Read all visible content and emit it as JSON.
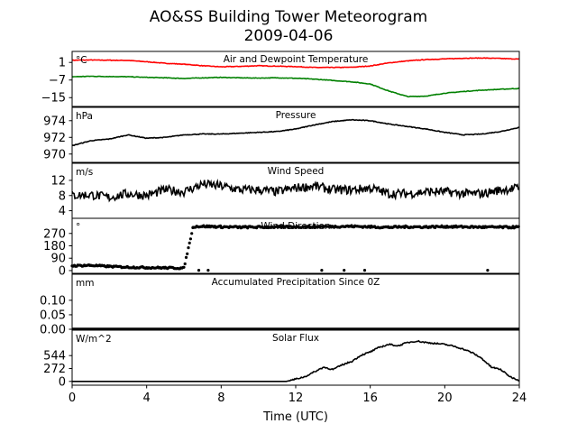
{
  "chart_data": {
    "type": "line",
    "title": "AO&SS Building Tower Meteorogram",
    "subtitle": "2009-04-06",
    "xlabel": "Time (UTC)",
    "xlim": [
      0,
      24
    ],
    "xticks": [
      "0",
      "4",
      "8",
      "12",
      "16",
      "20",
      "24"
    ],
    "panels": [
      {
        "name": "temperature",
        "title": "Air and Dewpoint Temperature",
        "unit": "°C",
        "ylim": [
          -19,
          6
        ],
        "yticks": [
          1,
          -7,
          -15
        ],
        "ytick_labels": [
          "1",
          "−7",
          "−15"
        ],
        "series": [
          {
            "color": "#ff0000",
            "x": [
              0,
              1,
              2,
              3,
              4,
              5,
              6,
              7,
              8,
              9,
              10,
              11,
              12,
              13,
              14,
              15,
              16,
              17,
              18,
              19,
              20,
              21,
              22,
              23,
              24
            ],
            "y": [
              2.0,
              2.1,
              2.0,
              1.9,
              1.3,
              0.6,
              0.2,
              -0.5,
              -1.0,
              -0.8,
              -0.5,
              -0.7,
              -0.9,
              -1.3,
              -1.3,
              -1.2,
              -0.6,
              0.8,
              1.7,
              2.3,
              2.6,
              2.9,
              3.0,
              2.8,
              2.5
            ]
          },
          {
            "color": "#008000",
            "x": [
              0,
              1,
              2,
              3,
              4,
              5,
              6,
              7,
              8,
              9,
              10,
              11,
              12,
              13,
              14,
              15,
              16,
              17,
              18,
              19,
              20,
              21,
              22,
              23,
              24
            ],
            "y": [
              -5.5,
              -5.3,
              -5.4,
              -5.5,
              -5.8,
              -6.0,
              -6.3,
              -6.0,
              -5.8,
              -6.0,
              -6.1,
              -6.0,
              -6.2,
              -6.6,
              -7.2,
              -7.8,
              -8.8,
              -12.0,
              -14.5,
              -14.3,
              -13.0,
              -12.2,
              -11.6,
              -11.2,
              -10.8
            ]
          }
        ]
      },
      {
        "name": "pressure",
        "title": "Pressure",
        "unit": "hPa",
        "ylim": [
          969.0,
          975.6
        ],
        "yticks": [
          974,
          972,
          970
        ],
        "ytick_labels": [
          "974",
          "972",
          "970"
        ],
        "series": [
          {
            "color": "#000000",
            "x": [
              0,
              1,
              2,
              3,
              4,
              5,
              6,
              7,
              8,
              9,
              10,
              11,
              12,
              13,
              14,
              15,
              16,
              17,
              18,
              19,
              20,
              21,
              22,
              23,
              24
            ],
            "y": [
              971.0,
              971.6,
              971.8,
              972.3,
              971.9,
              972.0,
              972.3,
              972.4,
              972.4,
              972.5,
              972.6,
              972.7,
              973.0,
              973.5,
              973.9,
              974.1,
              974.0,
              973.6,
              973.3,
              973.0,
              972.6,
              972.3,
              972.4,
              972.7,
              973.2
            ]
          }
        ]
      },
      {
        "name": "wind_speed",
        "title": "Wind Speed",
        "unit": "m/s",
        "ylim": [
          2,
          16.5
        ],
        "yticks": [
          12,
          8,
          4
        ],
        "ytick_labels": [
          "12",
          "8",
          "4"
        ],
        "series": [
          {
            "color": "#000000",
            "x": [
              0,
              1,
              2,
              3,
              4,
              5,
              6,
              7,
              8,
              9,
              10,
              11,
              12,
              13,
              14,
              15,
              16,
              17,
              18,
              19,
              20,
              21,
              22,
              23,
              24
            ],
            "y": [
              8.0,
              8.2,
              7.5,
              8.5,
              8.0,
              9.5,
              9.0,
              11.0,
              10.5,
              9.5,
              9.5,
              9.0,
              10.0,
              10.5,
              9.5,
              9.5,
              10.0,
              8.5,
              8.5,
              9.0,
              9.0,
              8.5,
              8.5,
              9.5,
              10.0
            ]
          }
        ]
      },
      {
        "name": "wind_direction",
        "title": "Wind Direction",
        "unit": "°",
        "ylim": [
          -20,
          380
        ],
        "yticks": [
          270,
          180,
          90,
          0
        ],
        "ytick_labels": [
          "270",
          "180",
          "90",
          "0"
        ],
        "series": [
          {
            "color": "#000000",
            "style": "dots",
            "x": [
              0,
              1,
              2,
              3,
              4,
              5,
              6,
              6.5,
              7,
              8,
              9,
              10,
              11,
              12,
              13,
              14,
              15,
              16,
              17,
              18,
              19,
              20,
              21,
              22,
              23,
              24
            ],
            "y": [
              35,
              38,
              30,
              25,
              22,
              20,
              18,
              320,
              322,
              318,
              315,
              316,
              317,
              318,
              319,
              320,
              322,
              318,
              315,
              318,
              317,
              320,
              318,
              316,
              315,
              316
            ]
          }
        ]
      },
      {
        "name": "precipitation",
        "title": "Accumulated Precipitation Since 0Z",
        "unit": "mm",
        "ylim": [
          0,
          0.19
        ],
        "yticks": [
          0.1,
          0.05,
          0.0
        ],
        "ytick_labels": [
          "0.10",
          "0.05",
          "0.00"
        ],
        "series": [
          {
            "color": "#000000",
            "x": [
              0,
              24
            ],
            "y": [
              0,
              0
            ]
          }
        ]
      },
      {
        "name": "solar_flux",
        "title": "Solar Flux",
        "unit": "W/m^2",
        "ylim": [
          -80,
          1080
        ],
        "yticks": [
          544,
          272,
          0
        ],
        "ytick_labels": [
          "544",
          "272",
          "0"
        ],
        "series": [
          {
            "color": "#000000",
            "x": [
              0,
              4,
              8,
              11.5,
              12,
              12.5,
              13,
              13.5,
              14,
              14.5,
              15,
              15.5,
              16,
              16.5,
              17,
              17.5,
              18,
              18.5,
              19,
              19.5,
              20,
              20.5,
              21,
              21.5,
              22,
              22.5,
              23,
              23.5,
              24
            ],
            "y": [
              0,
              0,
              0,
              0,
              50,
              100,
              200,
              300,
              250,
              350,
              420,
              550,
              620,
              720,
              780,
              750,
              820,
              850,
              820,
              800,
              780,
              740,
              680,
              600,
              480,
              300,
              250,
              100,
              20
            ]
          }
        ]
      }
    ]
  }
}
